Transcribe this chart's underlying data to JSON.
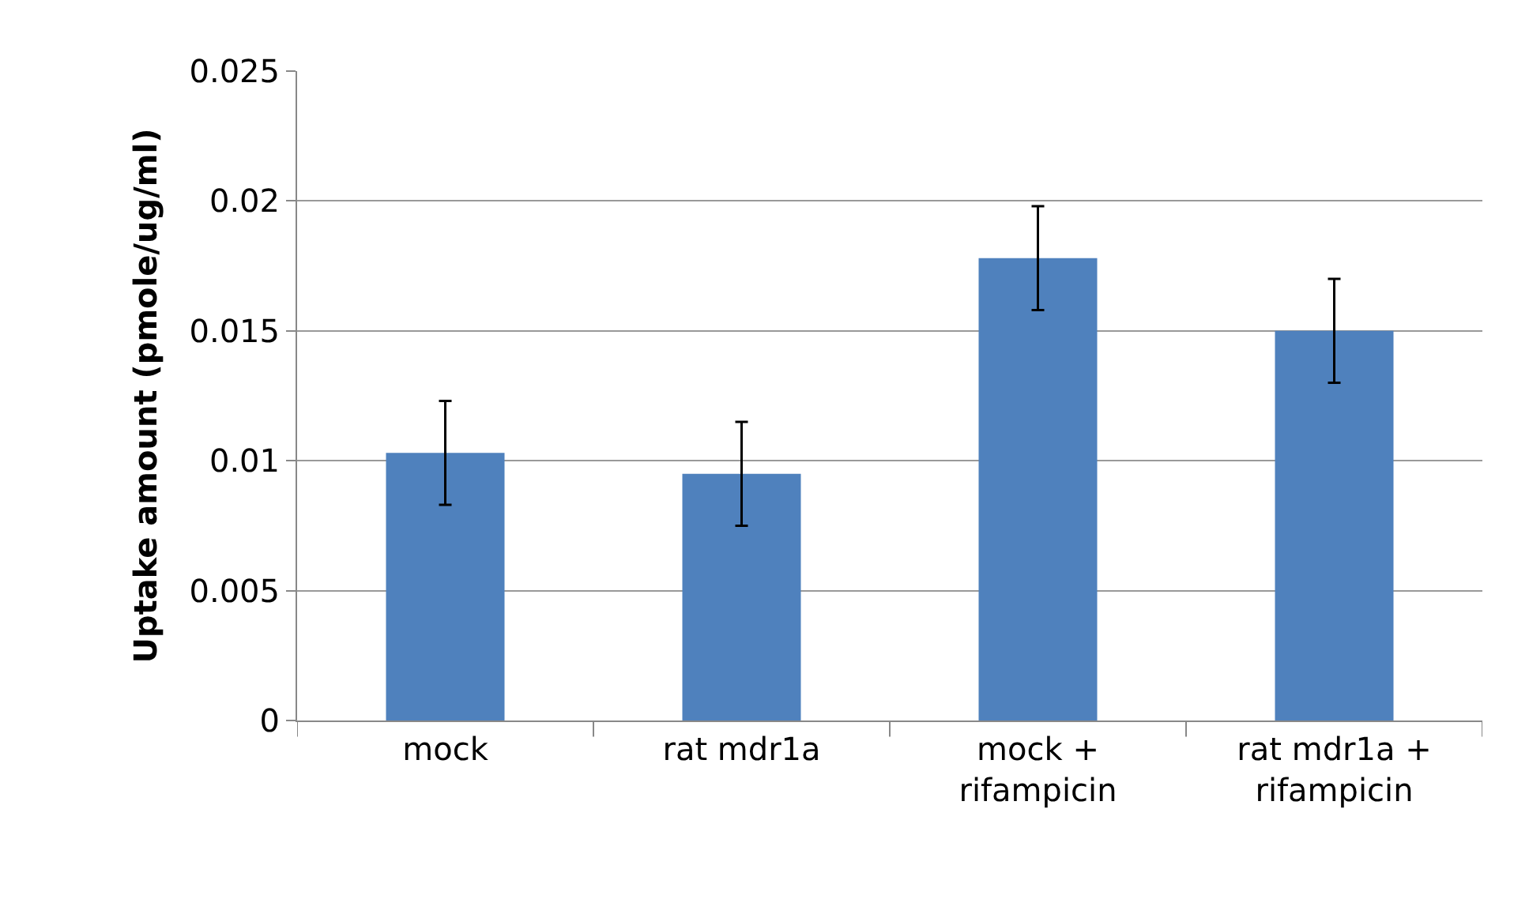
{
  "chart_data": {
    "type": "bar",
    "ylabel": "Uptake amount (pmole/ug/ml)",
    "categories": [
      "mock",
      "rat mdr1a",
      "mock + rifampicin",
      "rat mdr1a + rifampicin"
    ],
    "values": [
      0.0103,
      0.0095,
      0.0178,
      0.015
    ],
    "errors": [
      0.002,
      0.002,
      0.002,
      0.002
    ],
    "color": "#4f81bd",
    "ylim": [
      0,
      0.025
    ],
    "yticks": [
      0,
      0.005,
      0.01,
      0.015,
      0.02,
      0.025
    ],
    "grid": "y",
    "legend": false
  }
}
